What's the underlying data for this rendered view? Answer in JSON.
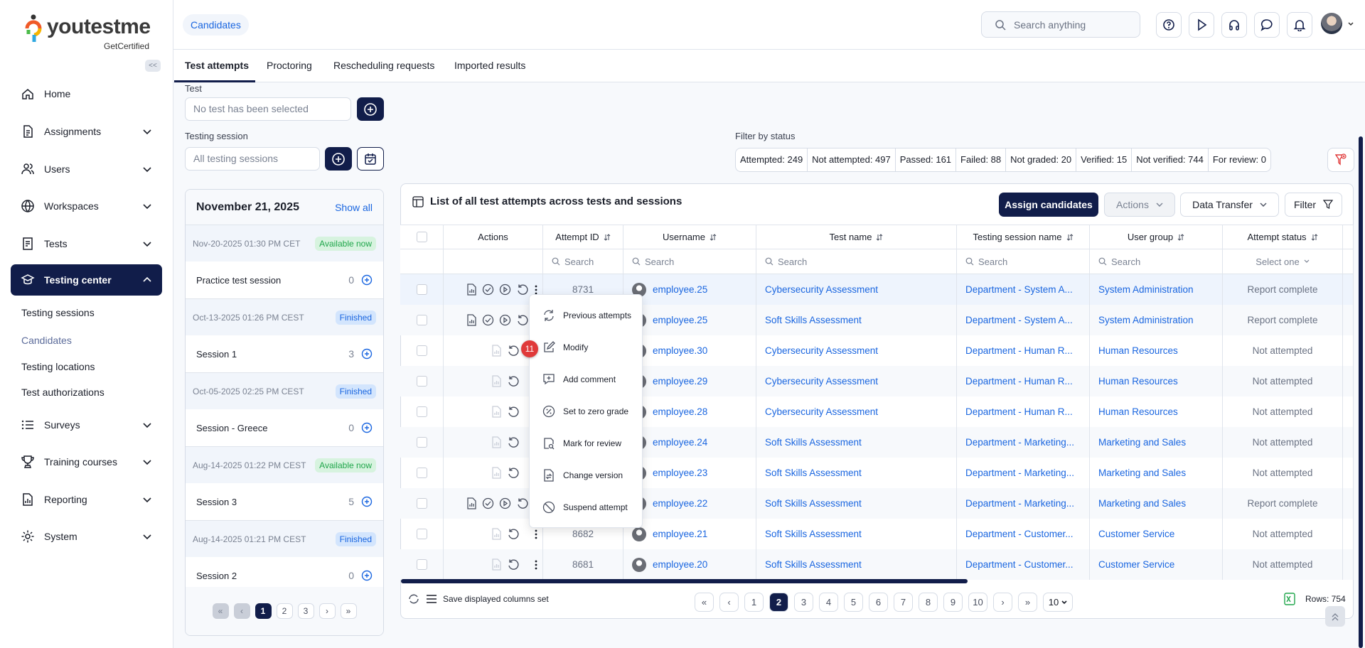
{
  "brand": {
    "name": "youtestme",
    "tagline": "GetCertified",
    "colors": {
      "navy": "#111d4a",
      "link": "#1a66e0",
      "danger": "#e03a3a"
    }
  },
  "sidebar": {
    "collapse_label": "<<",
    "items": [
      {
        "label": "Home",
        "icon": "home-icon"
      },
      {
        "label": "Assignments",
        "icon": "document-icon"
      },
      {
        "label": "Users",
        "icon": "users-icon"
      },
      {
        "label": "Workspaces",
        "icon": "globe-icon"
      },
      {
        "label": "Tests",
        "icon": "test-icon"
      },
      {
        "label": "Testing center",
        "icon": "graduation-cap-icon",
        "active": true
      },
      {
        "label": "Surveys",
        "icon": "list-icon"
      },
      {
        "label": "Training courses",
        "icon": "trophy-icon"
      },
      {
        "label": "Reporting",
        "icon": "report-icon"
      },
      {
        "label": "System",
        "icon": "gear-icon"
      }
    ],
    "sub_items": [
      "Testing sessions",
      "Candidates",
      "Testing locations",
      "Test authorizations"
    ],
    "current_sub": "Candidates"
  },
  "header": {
    "breadcrumb": "Candidates",
    "search_placeholder": "Search anything",
    "icons": [
      "help-icon",
      "play-icon",
      "headset-icon",
      "chat-icon",
      "bell-icon"
    ]
  },
  "tabs": [
    "Test attempts",
    "Proctoring",
    "Rescheduling requests",
    "Imported results"
  ],
  "filters": {
    "test_label": "Test",
    "test_placeholder": "No test has been selected",
    "session_label": "Testing session",
    "session_placeholder": "All testing sessions",
    "status_label": "Filter by status",
    "status": [
      "Attempted: 249",
      "Not attempted: 497",
      "Passed: 161",
      "Failed: 88",
      "Not graded: 20",
      "Verified: 15",
      "Not verified: 744",
      "For review: 0"
    ]
  },
  "sessions": {
    "date": "November 21, 2025",
    "show_all": "Show all",
    "items": [
      {
        "when": "Nov-20-2025 01:30 PM CET",
        "status": "Available now",
        "name": "Practice test session",
        "count": "0"
      },
      {
        "when": "Oct-13-2025 01:26 PM CEST",
        "status": "Finished",
        "name": "Session 1",
        "count": "3"
      },
      {
        "when": "Oct-05-2025 02:25 PM CEST",
        "status": "Finished",
        "name": "Session - Greece",
        "count": "0"
      },
      {
        "when": "Aug-14-2025 01:22 PM CEST",
        "status": "Available now",
        "name": "Session 3",
        "count": "5"
      },
      {
        "when": "Aug-14-2025 01:21 PM CEST",
        "status": "Finished",
        "name": "Session 2",
        "count": "0"
      }
    ],
    "pages": [
      "1",
      "2",
      "3"
    ],
    "current_page": "1"
  },
  "table": {
    "title": "List of all test attempts across tests and sessions",
    "assign_label": "Assign candidates",
    "actions_label": "Actions",
    "transfer_label": "Data Transfer",
    "filter_label": "Filter",
    "columns": [
      "",
      "Actions",
      "Attempt ID",
      "Username",
      "Test name",
      "Testing session name",
      "User group",
      "Attempt status"
    ],
    "search_placeholder": "Search",
    "status_select": "Select one",
    "rows": [
      {
        "id": "8731",
        "user": "employee.25",
        "test": "Cybersecurity Assessment",
        "session": "Department - System A...",
        "group": "System Administration",
        "status": "Report complete",
        "full": true
      },
      {
        "id": "",
        "user": "employee.25",
        "test": "Soft Skills Assessment",
        "session": "Department - System A...",
        "group": "System Administration",
        "status": "Report complete",
        "full": true
      },
      {
        "id": "",
        "user": "employee.30",
        "test": "Cybersecurity Assessment",
        "session": "Department - Human R...",
        "group": "Human Resources",
        "status": "Not attempted",
        "full": false
      },
      {
        "id": "",
        "user": "employee.29",
        "test": "Cybersecurity Assessment",
        "session": "Department - Human R...",
        "group": "Human Resources",
        "status": "Not attempted",
        "full": false
      },
      {
        "id": "",
        "user": "employee.28",
        "test": "Cybersecurity Assessment",
        "session": "Department - Human R...",
        "group": "Human Resources",
        "status": "Not attempted",
        "full": false
      },
      {
        "id": "",
        "user": "employee.24",
        "test": "Soft Skills Assessment",
        "session": "Department - Marketing...",
        "group": "Marketing and Sales",
        "status": "Not attempted",
        "full": false
      },
      {
        "id": "",
        "user": "employee.23",
        "test": "Soft Skills Assessment",
        "session": "Department - Marketing...",
        "group": "Marketing and Sales",
        "status": "Not attempted",
        "full": false
      },
      {
        "id": "",
        "user": "employee.22",
        "test": "Soft Skills Assessment",
        "session": "Department - Marketing...",
        "group": "Marketing and Sales",
        "status": "Report complete",
        "full": true
      },
      {
        "id": "8682",
        "user": "employee.21",
        "test": "Soft Skills Assessment",
        "session": "Department - Customer...",
        "group": "Customer Service",
        "status": "Not attempted",
        "full": false
      },
      {
        "id": "8681",
        "user": "employee.20",
        "test": "Soft Skills Assessment",
        "session": "Department - Customer...",
        "group": "Customer Service",
        "status": "Not attempted",
        "full": false
      }
    ]
  },
  "context_menu": {
    "badge": "11",
    "items": [
      {
        "label": "Previous attempts",
        "icon": "refresh-icon"
      },
      {
        "label": "Modify",
        "icon": "edit-icon"
      },
      {
        "label": "Add comment",
        "icon": "comment-plus-icon"
      },
      {
        "label": "Set to zero grade",
        "icon": "percent-icon"
      },
      {
        "label": "Mark for review",
        "icon": "review-icon"
      },
      {
        "label": "Change version",
        "icon": "version-icon"
      },
      {
        "label": "Suspend attempt",
        "icon": "ban-icon"
      }
    ]
  },
  "footer": {
    "save_columns": "Save displayed columns set",
    "pages": [
      "1",
      "2",
      "3",
      "4",
      "5",
      "6",
      "7",
      "8",
      "9",
      "10"
    ],
    "current_page": "2",
    "page_size": "10",
    "rows": "Rows: 754"
  }
}
